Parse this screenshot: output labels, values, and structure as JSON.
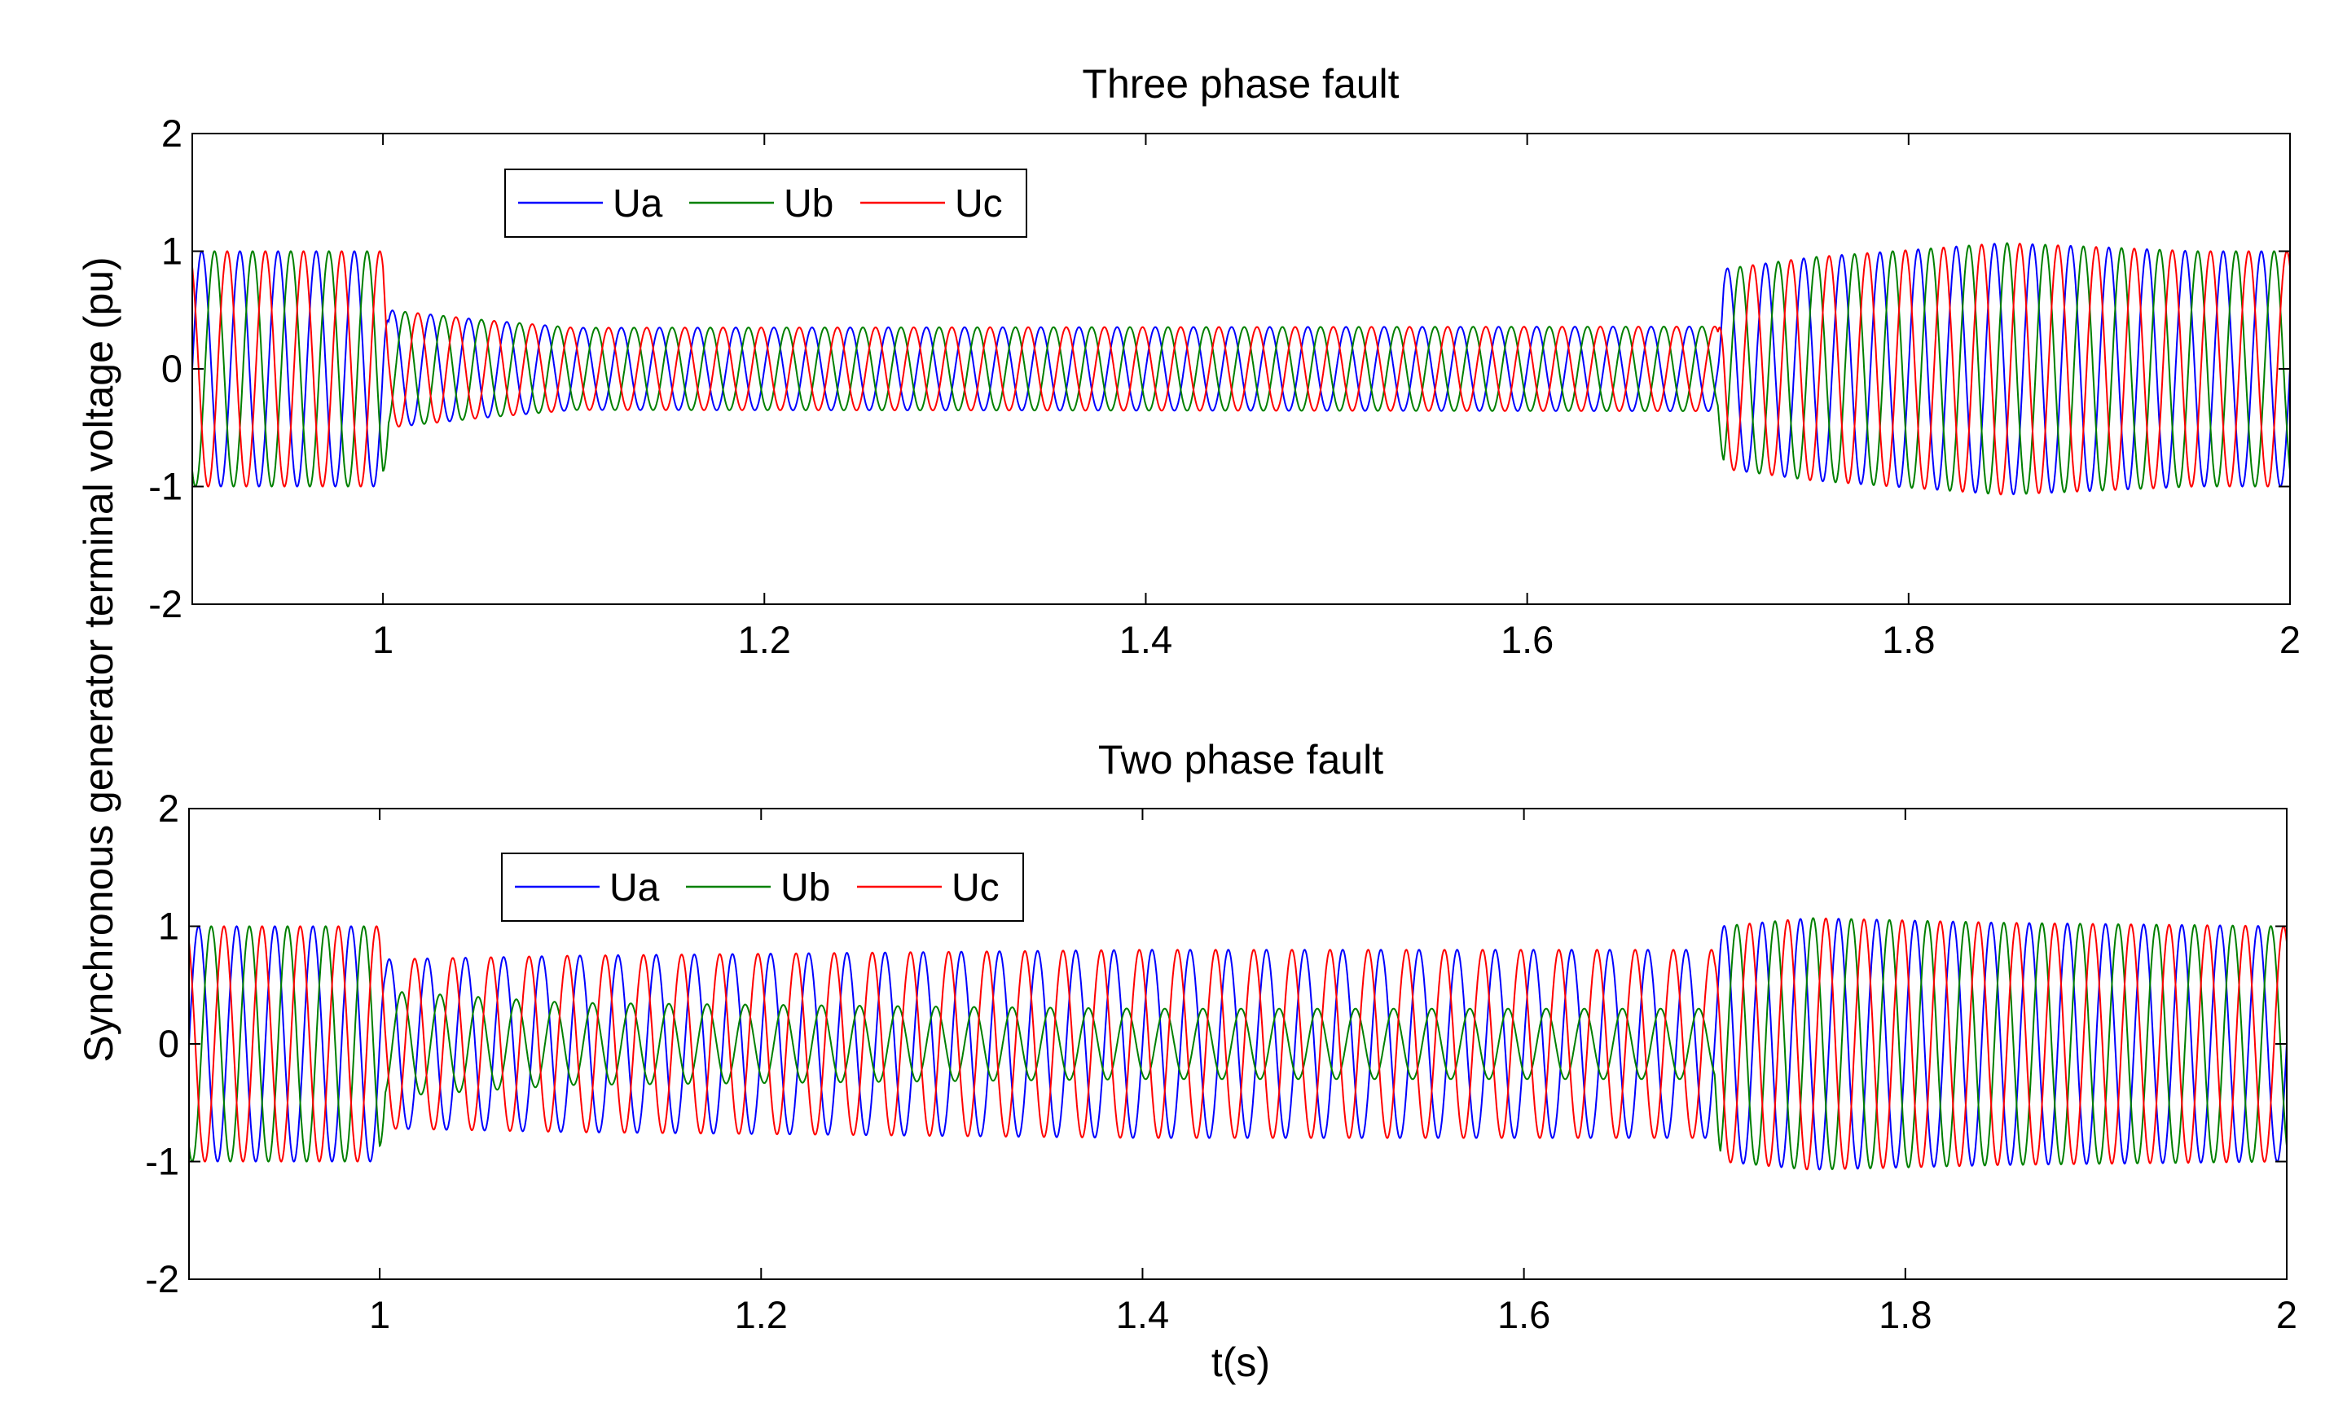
{
  "chart_data": [
    {
      "type": "line",
      "title": "Three phase fault",
      "xlabel": "",
      "ylabel": "Synchronous generator terminal voltage (pu)",
      "xlim": [
        0.9,
        2.0
      ],
      "ylim": [
        -2,
        2
      ],
      "xticks": [
        1,
        1.2,
        1.4,
        1.6,
        1.8,
        2
      ],
      "xtick_labels": [
        "1",
        "1.2",
        "1.4",
        "1.6",
        "1.8",
        "2"
      ],
      "yticks": [
        2,
        1,
        0,
        -1,
        -2
      ],
      "ytick_labels": [
        "2",
        "1",
        "0",
        "-1",
        "-2"
      ],
      "grid": false,
      "legend": {
        "placement": "top-left",
        "orientation": "horizontal"
      },
      "frequency_hz": 50,
      "fault_interval_s": [
        1.0,
        1.7
      ],
      "series": [
        {
          "name": "Ua",
          "color": "#0000ff",
          "phase_deg": 0,
          "amplitude_envelope": [
            [
              0.9,
              1.0
            ],
            [
              1.0,
              1.0
            ],
            [
              1.003,
              0.5
            ],
            [
              1.05,
              0.42
            ],
            [
              1.1,
              0.35
            ],
            [
              1.7,
              0.36
            ],
            [
              1.703,
              0.85
            ],
            [
              1.75,
              0.95
            ],
            [
              1.85,
              1.07
            ],
            [
              1.95,
              1.0
            ],
            [
              2.0,
              1.0
            ]
          ]
        },
        {
          "name": "Ub",
          "color": "#008000",
          "phase_deg": -120,
          "amplitude_envelope": [
            [
              0.9,
              1.0
            ],
            [
              1.0,
              1.0
            ],
            [
              1.003,
              0.5
            ],
            [
              1.05,
              0.42
            ],
            [
              1.1,
              0.35
            ],
            [
              1.7,
              0.36
            ],
            [
              1.703,
              0.85
            ],
            [
              1.75,
              0.95
            ],
            [
              1.85,
              1.07
            ],
            [
              1.95,
              1.0
            ],
            [
              2.0,
              1.0
            ]
          ]
        },
        {
          "name": "Uc",
          "color": "#ff0000",
          "phase_deg": 120,
          "amplitude_envelope": [
            [
              0.9,
              1.0
            ],
            [
              1.0,
              1.0
            ],
            [
              1.003,
              0.5
            ],
            [
              1.05,
              0.42
            ],
            [
              1.1,
              0.35
            ],
            [
              1.7,
              0.36
            ],
            [
              1.703,
              0.85
            ],
            [
              1.75,
              0.95
            ],
            [
              1.85,
              1.07
            ],
            [
              1.95,
              1.0
            ],
            [
              2.0,
              1.0
            ]
          ]
        }
      ]
    },
    {
      "type": "line",
      "title": "Two phase fault",
      "xlabel": "t(s)",
      "ylabel": "Synchronous generator terminal voltage (pu)",
      "xlim": [
        0.9,
        2.0
      ],
      "ylim": [
        -2,
        2
      ],
      "xticks": [
        1,
        1.2,
        1.4,
        1.6,
        1.8,
        2
      ],
      "xtick_labels": [
        "1",
        "1.2",
        "1.4",
        "1.6",
        "1.8",
        "2"
      ],
      "yticks": [
        2,
        1,
        0,
        -1,
        -2
      ],
      "ytick_labels": [
        "2",
        "1",
        "0",
        "-1",
        "-2"
      ],
      "grid": false,
      "legend": {
        "placement": "top-left",
        "orientation": "horizontal"
      },
      "frequency_hz": 50,
      "fault_interval_s": [
        1.0,
        1.7
      ],
      "series": [
        {
          "name": "Ua",
          "color": "#0000ff",
          "phase_deg": 0,
          "amplitude_envelope": [
            [
              0.9,
              1.0
            ],
            [
              1.0,
              1.0
            ],
            [
              1.003,
              0.72
            ],
            [
              1.1,
              0.75
            ],
            [
              1.4,
              0.8
            ],
            [
              1.6,
              0.8
            ],
            [
              1.7,
              0.8
            ],
            [
              1.703,
              1.0
            ],
            [
              1.75,
              1.07
            ],
            [
              1.85,
              1.03
            ],
            [
              2.0,
              1.0
            ]
          ]
        },
        {
          "name": "Ub",
          "color": "#008000",
          "phase_deg": -120,
          "amplitude_envelope": [
            [
              0.9,
              1.0
            ],
            [
              1.0,
              1.0
            ],
            [
              1.003,
              0.45
            ],
            [
              1.1,
              0.35
            ],
            [
              1.4,
              0.3
            ],
            [
              1.6,
              0.3
            ],
            [
              1.7,
              0.3
            ],
            [
              1.703,
              1.0
            ],
            [
              1.75,
              1.07
            ],
            [
              1.85,
              1.03
            ],
            [
              2.0,
              1.0
            ]
          ]
        },
        {
          "name": "Uc",
          "color": "#ff0000",
          "phase_deg": 120,
          "amplitude_envelope": [
            [
              0.9,
              1.0
            ],
            [
              1.0,
              1.0
            ],
            [
              1.003,
              0.72
            ],
            [
              1.1,
              0.75
            ],
            [
              1.4,
              0.8
            ],
            [
              1.6,
              0.8
            ],
            [
              1.7,
              0.8
            ],
            [
              1.703,
              1.0
            ],
            [
              1.75,
              1.07
            ],
            [
              1.85,
              1.03
            ],
            [
              2.0,
              1.0
            ]
          ]
        }
      ]
    }
  ]
}
